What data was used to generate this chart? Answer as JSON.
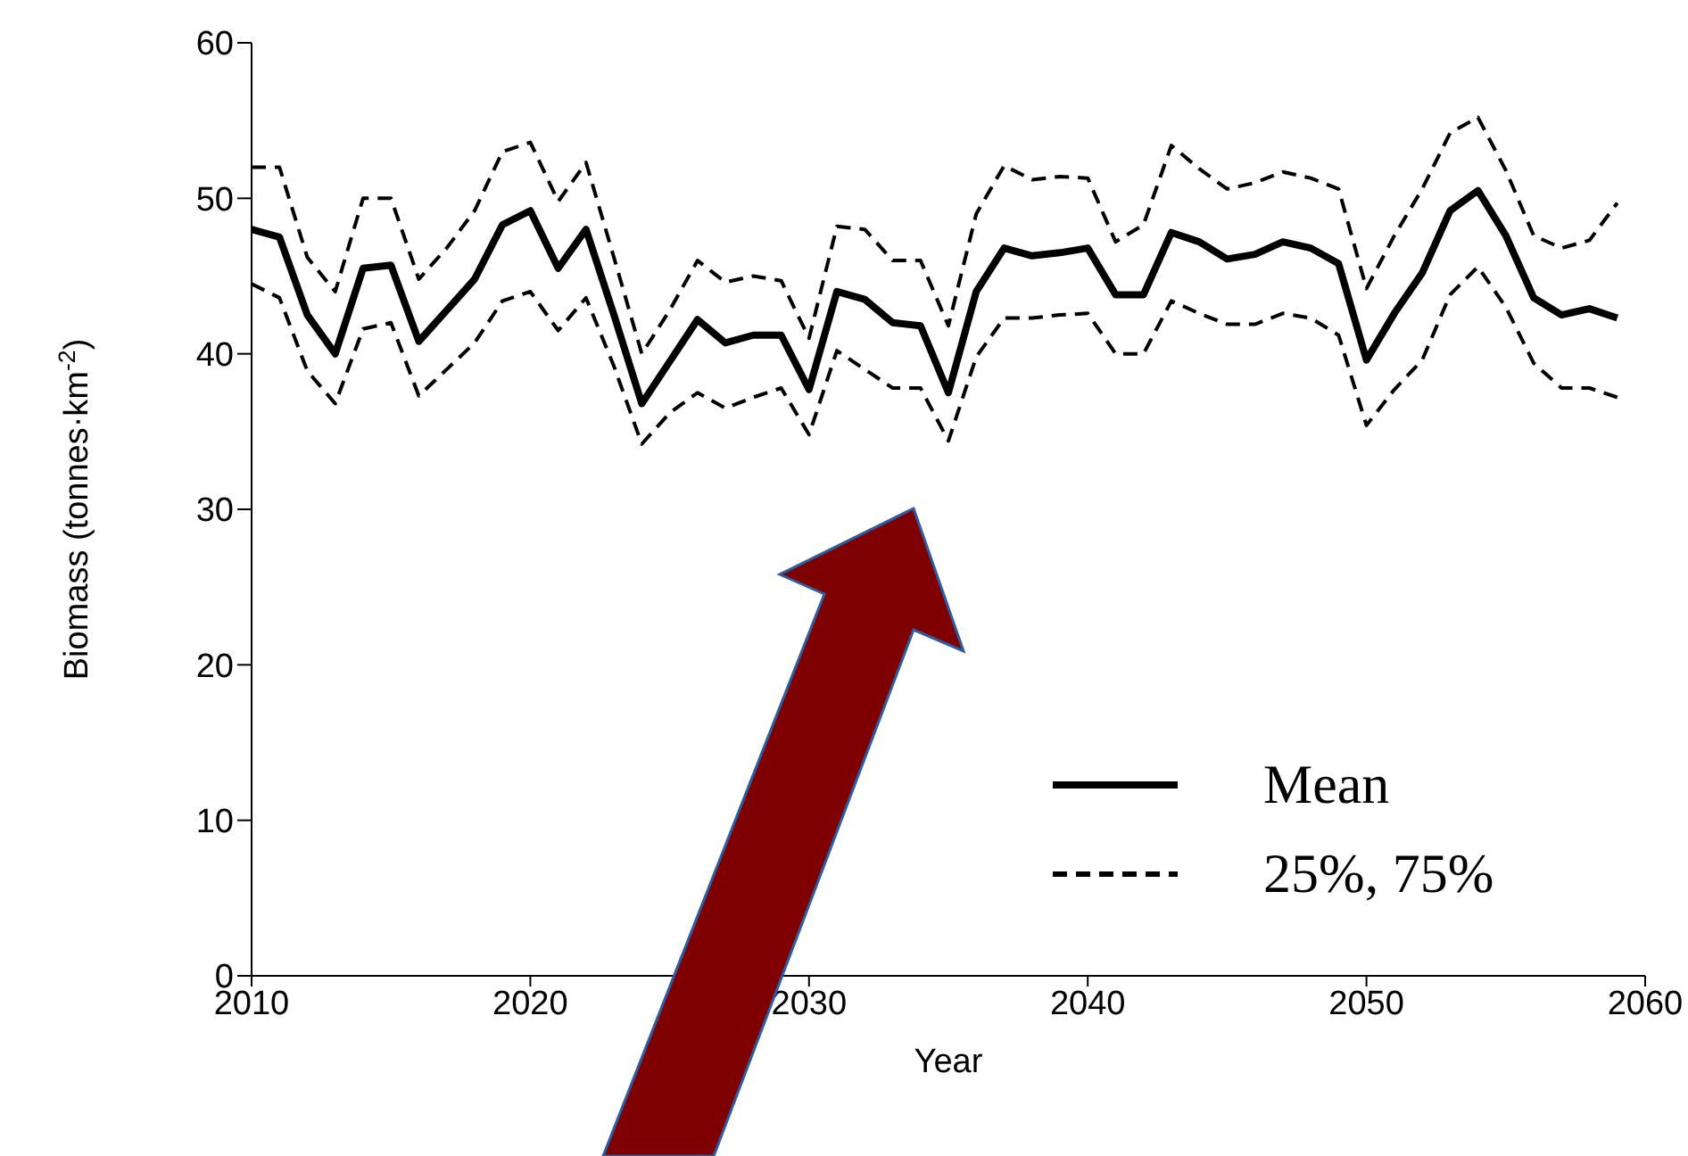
{
  "chart_data": {
    "type": "line",
    "xlabel": "Year",
    "ylabel": "Biomass (tonnes·km$^{-2}$)",
    "x": [
      2010,
      2011,
      2012,
      2013,
      2014,
      2015,
      2016,
      2017,
      2018,
      2019,
      2020,
      2021,
      2022,
      2023,
      2024,
      2025,
      2026,
      2027,
      2028,
      2029,
      2030,
      2031,
      2032,
      2033,
      2034,
      2035,
      2036,
      2037,
      2038,
      2039,
      2040,
      2041,
      2042,
      2043,
      2044,
      2045,
      2046,
      2047,
      2048,
      2049,
      2050,
      2051,
      2052,
      2053,
      2054,
      2055,
      2056,
      2057,
      2058,
      2059
    ],
    "series": [
      {
        "name": "Mean",
        "color": "#000000",
        "line_style": "solid",
        "values": [
          48,
          47.5,
          42.5,
          40,
          45.5,
          45.7,
          40.8,
          42.8,
          44.8,
          48.3,
          49.2,
          45.5,
          48,
          42.5,
          36.8,
          39.5,
          42.2,
          40.7,
          41.2,
          41.2,
          37.7,
          44,
          43.5,
          42,
          41.8,
          37.5,
          44,
          46.8,
          46.3,
          46.5,
          46.8,
          43.8,
          43.8,
          47.8,
          47.2,
          46.1,
          46.4,
          47.2,
          46.8,
          45.8,
          39.6,
          42.6,
          45.2,
          49.2,
          50.5,
          47.6,
          43.6,
          42.5,
          42.9,
          42.3
        ]
      },
      {
        "name": "25%, 75%",
        "color": "#000000",
        "line_style": "dashed",
        "values": [
          52,
          52,
          46.2,
          44,
          50,
          50,
          44.8,
          46.8,
          49.2,
          53,
          53.6,
          49.8,
          52.3,
          46.2,
          40,
          42.8,
          46,
          44.6,
          45,
          44.7,
          41,
          48.2,
          48,
          46,
          46,
          41.8,
          49,
          52.1,
          51.2,
          51.4,
          51.3,
          47.2,
          48.3,
          53.4,
          51.9,
          50.6,
          51,
          51.7,
          51.3,
          50.6,
          44.2,
          47.6,
          50.6,
          54.2,
          55.2,
          51.8,
          47.6,
          46.8,
          47.3,
          49.7
        ]
      },
      {
        "color": "#000000",
        "line_style": "dashed",
        "values": [
          44.5,
          43.6,
          38.9,
          36.8,
          41.6,
          42,
          37.3,
          39,
          40.7,
          43.4,
          44,
          41.5,
          43.6,
          39.2,
          34.2,
          36.2,
          37.5,
          36.5,
          37.2,
          37.8,
          34.8,
          40.2,
          39,
          37.8,
          37.8,
          34.4,
          39.8,
          42.3,
          42.3,
          42.5,
          42.6,
          40,
          40,
          43.4,
          42.6,
          41.9,
          41.9,
          42.6,
          42.3,
          41.2,
          35.4,
          37.7,
          39.6,
          43.8,
          45.6,
          43,
          39.4,
          37.8,
          37.8,
          37.2
        ]
      }
    ],
    "xlim": [
      2010,
      2060
    ],
    "xticks": [
      2010,
      2020,
      2030,
      2040,
      2050,
      2060
    ],
    "ylim": [
      0,
      60
    ],
    "yticks": [
      0,
      10,
      20,
      30,
      40,
      50,
      60
    ],
    "grid": false,
    "legend": "bottom right"
  }
}
